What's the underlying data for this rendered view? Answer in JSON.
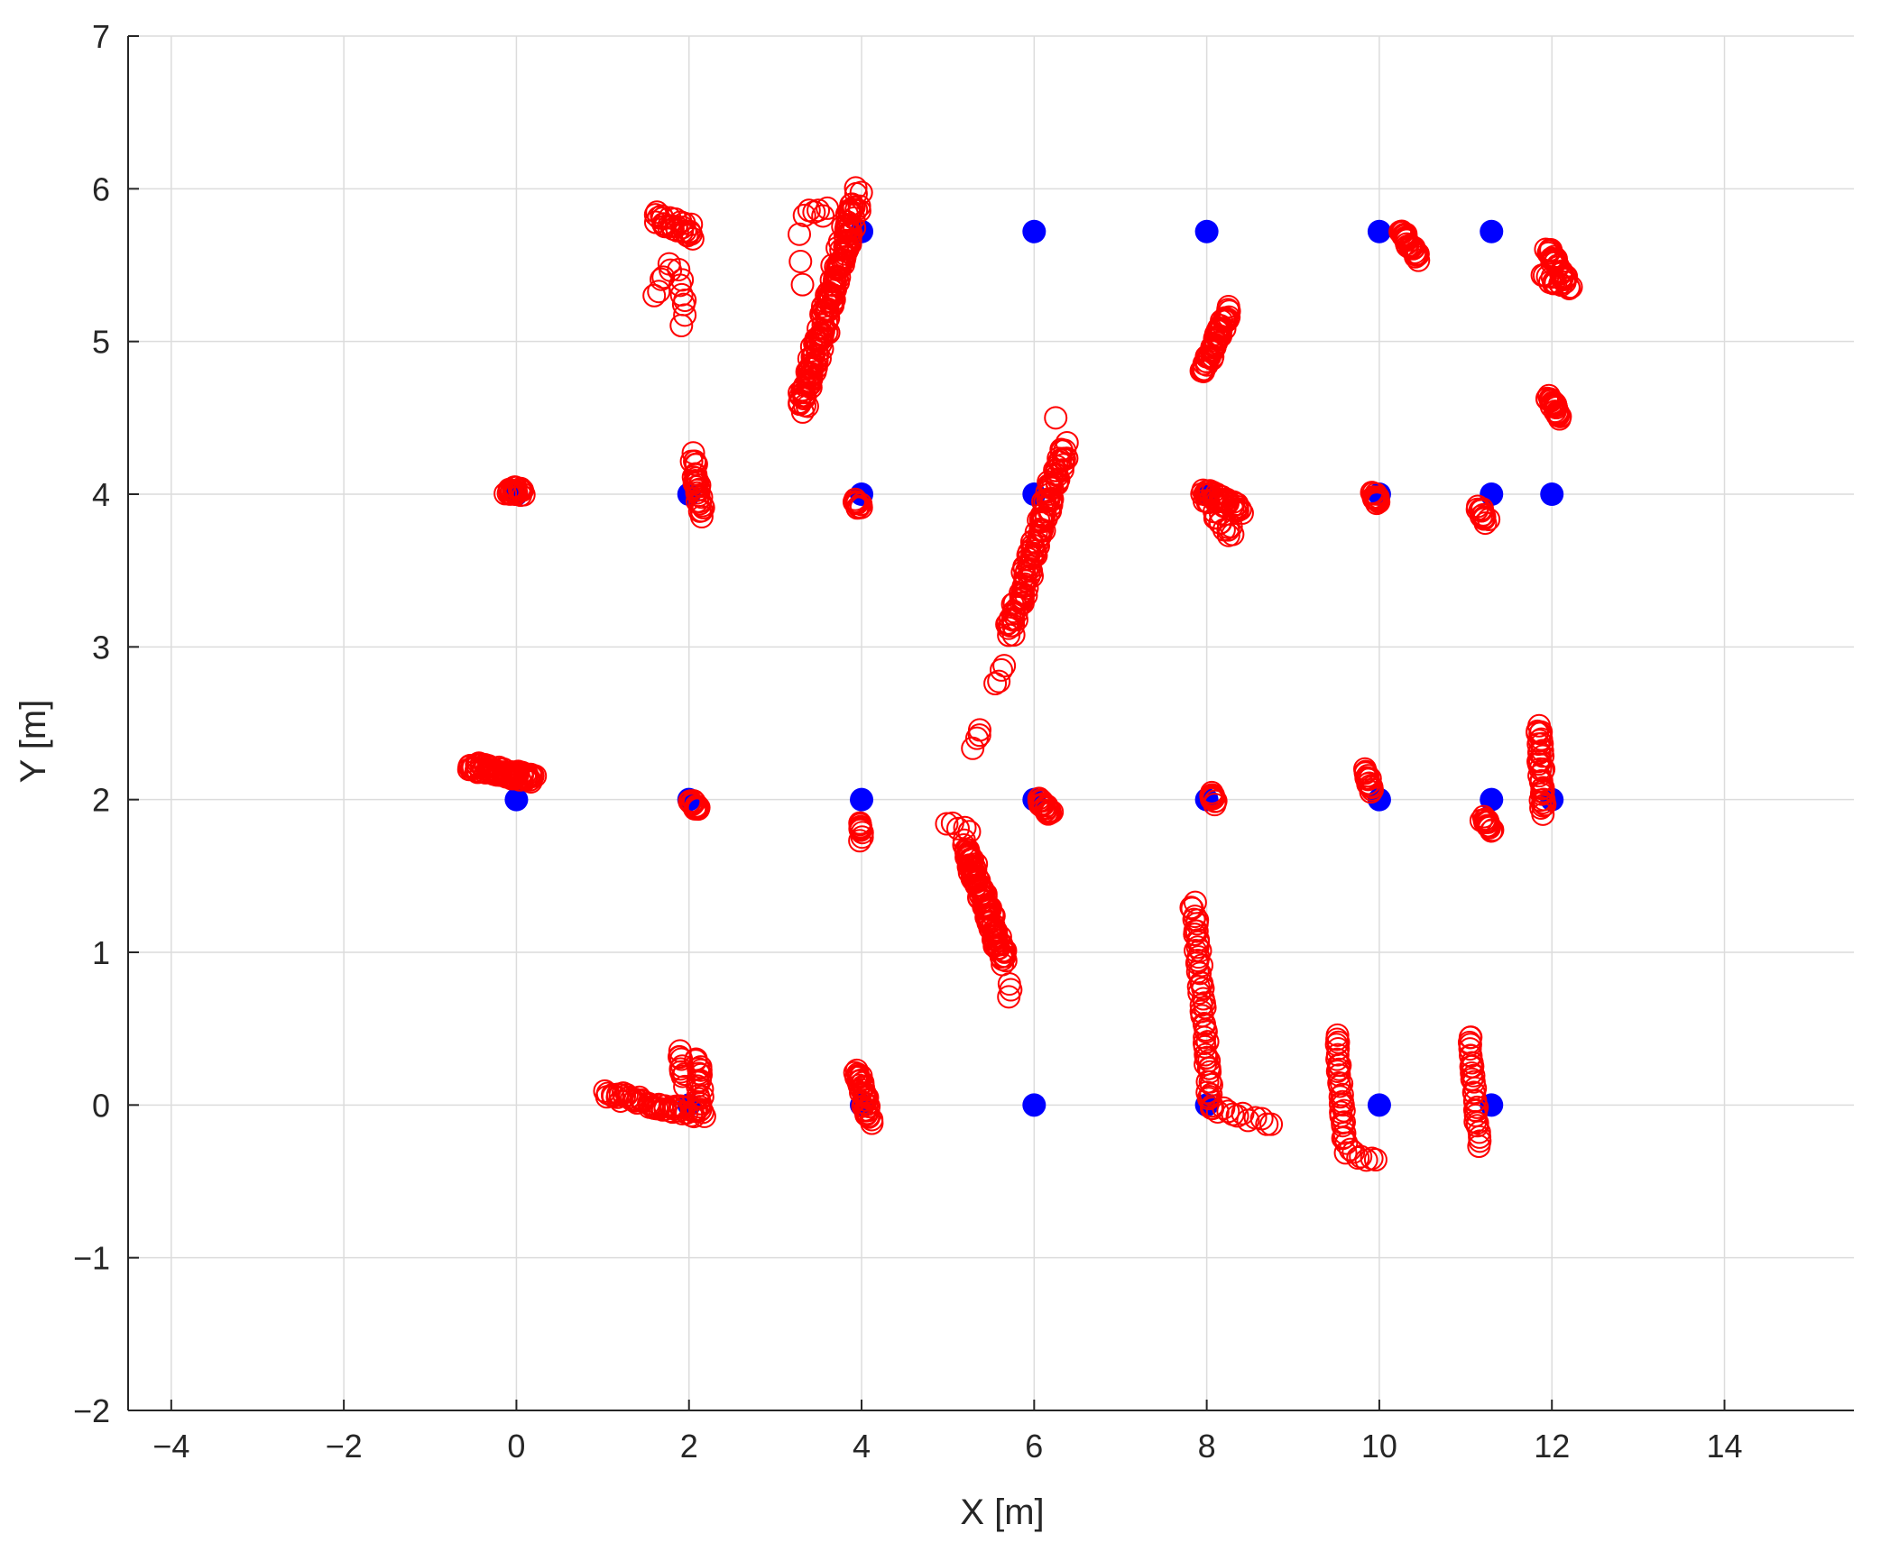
{
  "chart_data": {
    "type": "scatter",
    "title": "",
    "xlabel": "X [m]",
    "ylabel": "Y [m]",
    "xlim": [
      -4.5,
      15.5
    ],
    "ylim": [
      -2,
      7
    ],
    "xticks": [
      -4,
      -2,
      0,
      2,
      4,
      6,
      8,
      10,
      12,
      14
    ],
    "yticks": [
      -2,
      -1,
      0,
      1,
      2,
      3,
      4,
      5,
      6,
      7
    ],
    "xtick_labels": [
      "−4",
      "−2",
      "0",
      "2",
      "4",
      "6",
      "8",
      "10",
      "12",
      "14"
    ],
    "ytick_labels": [
      "−2",
      "−1",
      "0",
      "1",
      "2",
      "3",
      "4",
      "5",
      "6",
      "7"
    ],
    "grid": true,
    "colors": {
      "reference": "#0000ff",
      "estimate": "#ff0000",
      "grid": "#dcdcdc",
      "axis": "#262626"
    },
    "series": [
      {
        "marker": "filled-circle",
        "color": "#0000ff",
        "points": [
          [
            4,
            5.72
          ],
          [
            6,
            5.72
          ],
          [
            8,
            5.72
          ],
          [
            10,
            5.72
          ],
          [
            11.3,
            5.72
          ],
          [
            0,
            4
          ],
          [
            2,
            4
          ],
          [
            4,
            4
          ],
          [
            6,
            4
          ],
          [
            8,
            4
          ],
          [
            10,
            4
          ],
          [
            11.3,
            4
          ],
          [
            12,
            4
          ],
          [
            0,
            2
          ],
          [
            2,
            2
          ],
          [
            4,
            2
          ],
          [
            6,
            2
          ],
          [
            8,
            2
          ],
          [
            10,
            2
          ],
          [
            11.3,
            2
          ],
          [
            12,
            2
          ],
          [
            2,
            0
          ],
          [
            4,
            0
          ],
          [
            6,
            0
          ],
          [
            8,
            0
          ],
          [
            10,
            0
          ],
          [
            11.3,
            0
          ]
        ]
      },
      {
        "marker": "open-circle",
        "color": "#ff0000",
        "clusters": [
          {
            "from": [
              1.6,
              5.8
            ],
            "to": [
              2.05,
              5.72
            ],
            "n": 30,
            "spread": 0.05
          },
          {
            "from": [
              1.9,
              5.5
            ],
            "to": [
              1.95,
              5.1
            ],
            "n": 8,
            "spread": 0.04
          },
          {
            "from": [
              1.6,
              5.3
            ],
            "to": [
              1.8,
              5.5
            ],
            "n": 6,
            "spread": 0.03
          },
          {
            "from": [
              3.3,
              4.55
            ],
            "to": [
              3.95,
              5.95
            ],
            "n": 160,
            "spread": 0.06
          },
          {
            "from": [
              3.35,
              5.85
            ],
            "to": [
              3.6,
              5.85
            ],
            "n": 6,
            "spread": 0.03
          },
          {
            "from": [
              3.3,
              5.35
            ],
            "to": [
              3.3,
              5.7
            ],
            "n": 3,
            "spread": 0.03
          },
          {
            "from": [
              10.25,
              5.72
            ],
            "to": [
              10.45,
              5.55
            ],
            "n": 30,
            "spread": 0.02
          },
          {
            "from": [
              11.95,
              5.62
            ],
            "to": [
              12.2,
              5.35
            ],
            "n": 30,
            "spread": 0.03
          },
          {
            "from": [
              11.9,
              5.42
            ],
            "to": [
              12.1,
              5.38
            ],
            "n": 10,
            "spread": 0.02
          },
          {
            "from": [
              7.95,
              4.8
            ],
            "to": [
              8.25,
              5.2
            ],
            "n": 50,
            "spread": 0.03
          },
          {
            "from": [
              11.95,
              4.65
            ],
            "to": [
              12.1,
              4.5
            ],
            "n": 25,
            "spread": 0.02
          },
          {
            "from": [
              -0.1,
              4.02
            ],
            "to": [
              0.08,
              4.02
            ],
            "n": 22,
            "spread": 0.03
          },
          {
            "from": [
              2.05,
              4.25
            ],
            "to": [
              2.15,
              3.88
            ],
            "n": 30,
            "spread": 0.03
          },
          {
            "from": [
              3.92,
              3.95
            ],
            "to": [
              3.98,
              3.92
            ],
            "n": 12,
            "spread": 0.02
          },
          {
            "from": [
              5.3,
              2.35
            ],
            "to": [
              5.38,
              2.45
            ],
            "n": 4,
            "spread": 0.02
          },
          {
            "from": [
              5.55,
              2.75
            ],
            "to": [
              5.65,
              2.88
            ],
            "n": 4,
            "spread": 0.02
          },
          {
            "from": [
              5.72,
              3.1
            ],
            "to": [
              6.35,
              4.3
            ],
            "n": 120,
            "spread": 0.05
          },
          {
            "from": [
              6.25,
              4.5
            ],
            "to": [
              6.28,
              4.5
            ],
            "n": 1,
            "spread": 0.0
          },
          {
            "from": [
              7.95,
              4.02
            ],
            "to": [
              8.4,
              3.9
            ],
            "n": 40,
            "spread": 0.03
          },
          {
            "from": [
              8.0,
              3.95
            ],
            "to": [
              8.3,
              3.72
            ],
            "n": 15,
            "spread": 0.04
          },
          {
            "from": [
              9.92,
              4.0
            ],
            "to": [
              10.0,
              3.95
            ],
            "n": 14,
            "spread": 0.02
          },
          {
            "from": [
              11.15,
              3.92
            ],
            "to": [
              11.25,
              3.82
            ],
            "n": 12,
            "spread": 0.02
          },
          {
            "from": [
              -0.55,
              2.22
            ],
            "to": [
              0.2,
              2.14
            ],
            "n": 80,
            "spread": 0.03
          },
          {
            "from": [
              2.02,
              2.0
            ],
            "to": [
              2.1,
              1.93
            ],
            "n": 14,
            "spread": 0.02
          },
          {
            "from": [
              3.98,
              1.85
            ],
            "to": [
              4.0,
              1.75
            ],
            "n": 10,
            "spread": 0.02
          },
          {
            "from": [
              5.0,
              1.85
            ],
            "to": [
              5.25,
              1.8
            ],
            "n": 5,
            "spread": 0.02
          },
          {
            "from": [
              5.2,
              1.7
            ],
            "to": [
              5.65,
              0.95
            ],
            "n": 110,
            "spread": 0.04
          },
          {
            "from": [
              5.7,
              0.8
            ],
            "to": [
              5.72,
              0.7
            ],
            "n": 3,
            "spread": 0.02
          },
          {
            "from": [
              6.05,
              2.0
            ],
            "to": [
              6.2,
              1.9
            ],
            "n": 20,
            "spread": 0.02
          },
          {
            "from": [
              8.05,
              2.05
            ],
            "to": [
              8.1,
              1.98
            ],
            "n": 12,
            "spread": 0.02
          },
          {
            "from": [
              9.85,
              2.2
            ],
            "to": [
              9.9,
              2.05
            ],
            "n": 16,
            "spread": 0.02
          },
          {
            "from": [
              11.2,
              1.88
            ],
            "to": [
              11.3,
              1.8
            ],
            "n": 14,
            "spread": 0.02
          },
          {
            "from": [
              11.85,
              2.48
            ],
            "to": [
              11.9,
              1.92
            ],
            "n": 35,
            "spread": 0.03
          },
          {
            "from": [
              2.1,
              0.3
            ],
            "to": [
              2.15,
              -0.05
            ],
            "n": 20,
            "spread": 0.03
          },
          {
            "from": [
              1.05,
              0.07
            ],
            "to": [
              2.15,
              -0.06
            ],
            "n": 60,
            "spread": 0.03
          },
          {
            "from": [
              1.9,
              0.35
            ],
            "to": [
              1.95,
              0.15
            ],
            "n": 10,
            "spread": 0.03
          },
          {
            "from": [
              3.95,
              0.22
            ],
            "to": [
              4.1,
              -0.1
            ],
            "n": 35,
            "spread": 0.03
          },
          {
            "from": [
              7.85,
              1.32
            ],
            "to": [
              8.05,
              0.0
            ],
            "n": 60,
            "spread": 0.03
          },
          {
            "from": [
              8.05,
              -0.02
            ],
            "to": [
              8.75,
              -0.12
            ],
            "n": 12,
            "spread": 0.02
          },
          {
            "from": [
              9.5,
              0.45
            ],
            "to": [
              9.6,
              -0.25
            ],
            "n": 30,
            "spread": 0.02
          },
          {
            "from": [
              9.6,
              -0.3
            ],
            "to": [
              9.95,
              -0.37
            ],
            "n": 8,
            "spread": 0.02
          },
          {
            "from": [
              11.05,
              0.45
            ],
            "to": [
              11.15,
              -0.25
            ],
            "n": 30,
            "spread": 0.02
          }
        ]
      }
    ]
  }
}
